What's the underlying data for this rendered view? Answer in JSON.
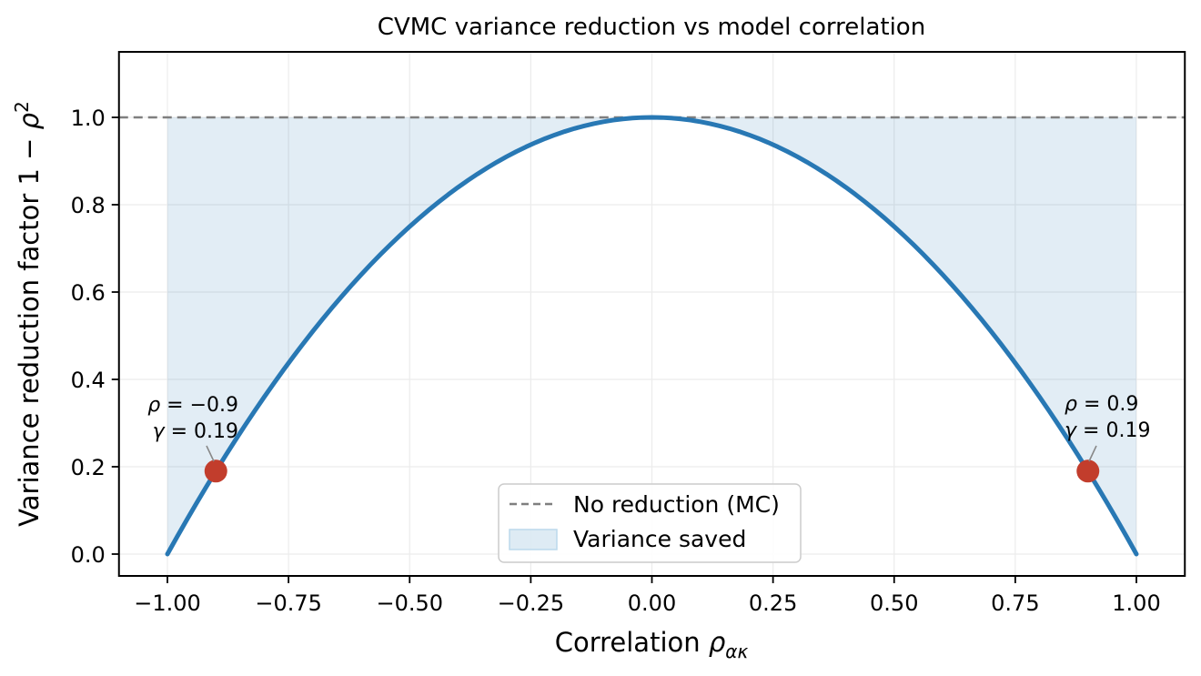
{
  "figure": {
    "title": "CVMC variance reduction vs model correlation"
  },
  "chart_data": {
    "type": "line",
    "title": "CVMC variance reduction vs model correlation",
    "xlabel": "Correlation ρ_ακ",
    "xlabel_parts": {
      "text": "Correlation ",
      "symbol": "ρ",
      "subscript": "ακ"
    },
    "ylabel": "Variance reduction factor 1 − ρ^2",
    "ylabel_parts": {
      "text": "Variance reduction factor 1 − ",
      "symbol": "ρ",
      "superscript": "2"
    },
    "xlim": [
      -1.1,
      1.1
    ],
    "ylim": [
      -0.05,
      1.15
    ],
    "grid": true,
    "x_ticks": {
      "values": [
        -1.0,
        -0.75,
        -0.5,
        -0.25,
        0.0,
        0.25,
        0.5,
        0.75,
        1.0
      ],
      "labels": [
        "−1.00",
        "−0.75",
        "−0.50",
        "−0.25",
        "0.00",
        "0.25",
        "0.50",
        "0.75",
        "1.00"
      ]
    },
    "y_ticks": {
      "values": [
        0.0,
        0.2,
        0.4,
        0.6,
        0.8,
        1.0
      ],
      "labels": [
        "0.0",
        "0.2",
        "0.4",
        "0.6",
        "0.8",
        "1.0"
      ]
    },
    "curve": {
      "name": "variance reduction factor",
      "formula": "y = 1 − x²",
      "x_min": -1.0,
      "x_max": 1.0,
      "points": [
        [
          -1.0,
          0.0
        ],
        [
          -0.9,
          0.19
        ],
        [
          -0.75,
          0.4375
        ],
        [
          -0.5,
          0.75
        ],
        [
          -0.25,
          0.9375
        ],
        [
          0.0,
          1.0
        ],
        [
          0.25,
          0.9375
        ],
        [
          0.5,
          0.75
        ],
        [
          0.75,
          0.4375
        ],
        [
          0.9,
          0.19
        ],
        [
          1.0,
          0.0
        ]
      ]
    },
    "reference_line": {
      "y": 1.0,
      "label": "No reduction (MC)",
      "style": "dashed"
    },
    "fill_between": {
      "label": "Variance saved",
      "upper": 1.0,
      "lower": "curve",
      "x_min": -1.0,
      "x_max": 1.0,
      "opacity": 0.13
    },
    "markers": {
      "points": [
        {
          "x": -0.9,
          "y": 0.19
        },
        {
          "x": 0.9,
          "y": 0.19
        }
      ]
    },
    "legend": {
      "position": "lower center",
      "entries": [
        "No reduction (MC)",
        "Variance saved"
      ]
    }
  },
  "annotations": {
    "left": {
      "sym1": "ρ",
      "rest1": " = −0.9",
      "sym2": "γ",
      "rest2": " = 0.19"
    },
    "right": {
      "sym1": "ρ",
      "rest1": " = 0.9",
      "sym2": "γ",
      "rest2": " = 0.19"
    }
  },
  "colors": {
    "curve": "#2878b4",
    "dashed": "#7f7f7f",
    "marker": "#c23d2c",
    "fill": "#1f77b4",
    "grid": "#ececec",
    "spine": "#000000",
    "legend_border": "#cccccc",
    "legend_patch_edge": "#bcd9ec",
    "leader": "#888888"
  }
}
